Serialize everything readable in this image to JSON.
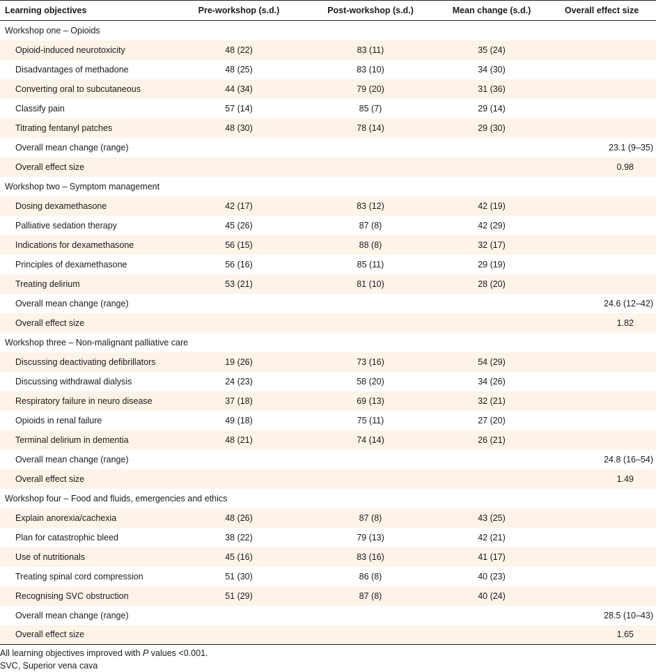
{
  "table": {
    "headers": [
      "Learning objectives",
      "Pre-workshop (s.d.)",
      "Post-workshop (s.d.)",
      "Mean change (s.d.)",
      "Overall effect size"
    ],
    "sections": [
      {
        "title": "Workshop one – Opioids",
        "rows": [
          {
            "objective": "Opioid-induced neurotoxicity",
            "pre": "48 (22)",
            "post": "83 (11)",
            "change": "35 (24)"
          },
          {
            "objective": "Disadvantages of methadone",
            "pre": "48 (25)",
            "post": "83 (10)",
            "change": "34 (30)"
          },
          {
            "objective": "Converting oral to subcutaneous",
            "pre": "44 (34)",
            "post": "79 (20)",
            "change": "31 (36)"
          },
          {
            "objective": "Classify pain",
            "pre": "57 (14)",
            "post": "85 (7)",
            "change": "29 (14)"
          },
          {
            "objective": "Titrating fentanyl patches",
            "pre": "48 (30)",
            "post": "78 (14)",
            "change": "29 (30)"
          }
        ],
        "mean_change_label": "Overall mean change (range)",
        "mean_change_value": "23.1 (9–35)",
        "effect_size_label": "Overall effect size",
        "effect_size_value": "0.98"
      },
      {
        "title": "Workshop two – Symptom management",
        "rows": [
          {
            "objective": "Dosing dexamethasone",
            "pre": "42 (17)",
            "post": "83 (12)",
            "change": "42 (19)"
          },
          {
            "objective": "Palliative sedation therapy",
            "pre": "45 (26)",
            "post": "87 (8)",
            "change": "42 (29)"
          },
          {
            "objective": "Indications for dexamethasone",
            "pre": "56 (15)",
            "post": "88 (8)",
            "change": "32 (17)"
          },
          {
            "objective": "Principles of dexamethasone",
            "pre": "56 (16)",
            "post": "85 (11)",
            "change": "29 (19)"
          },
          {
            "objective": "Treating delirium",
            "pre": "53 (21)",
            "post": "81 (10)",
            "change": "28 (20)"
          }
        ],
        "mean_change_label": "Overall mean change (range)",
        "mean_change_value": "24.6 (12–42)",
        "effect_size_label": "Overall effect size",
        "effect_size_value": "1.82"
      },
      {
        "title": "Workshop three – Non-malignant palliative care",
        "rows": [
          {
            "objective": "Discussing deactivating defibrillators",
            "pre": "19 (26)",
            "post": "73 (16)",
            "change": "54 (29)"
          },
          {
            "objective": "Discussing withdrawal dialysis",
            "pre": "24 (23)",
            "post": "58 (20)",
            "change": "34 (26)"
          },
          {
            "objective": "Respiratory failure in neuro disease",
            "pre": "37 (18)",
            "post": "69 (13)",
            "change": "32 (21)"
          },
          {
            "objective": "Opioids in renal failure",
            "pre": "49 (18)",
            "post": "75 (11)",
            "change": "27 (20)"
          },
          {
            "objective": "Terminal delirium in dementia",
            "pre": "48 (21)",
            "post": "74 (14)",
            "change": "26 (21)"
          }
        ],
        "mean_change_label": "Overall mean change (range)",
        "mean_change_value": "24.8 (16–54)",
        "effect_size_label": "Overall effect size",
        "effect_size_value": "1.49"
      },
      {
        "title": "Workshop four – Food and fluids, emergencies and ethics",
        "rows": [
          {
            "objective": "Explain anorexia/cachexia",
            "pre": "48 (26)",
            "post": "87 (8)",
            "change": "43 (25)"
          },
          {
            "objective": "Plan for catastrophic bleed",
            "pre": "38 (22)",
            "post": "79 (13)",
            "change": "42 (21)"
          },
          {
            "objective": "Use of nutritionals",
            "pre": "45 (16)",
            "post": "83 (16)",
            "change": "41 (17)"
          },
          {
            "objective": "Treating spinal cord compression",
            "pre": "51 (30)",
            "post": "86 (8)",
            "change": "40 (23)"
          },
          {
            "objective": "Recognising SVC obstruction",
            "pre": "51 (29)",
            "post": "87 (8)",
            "change": "40 (24)"
          }
        ],
        "mean_change_label": "Overall mean change (range)",
        "mean_change_value": "28.5 (10–43)",
        "effect_size_label": "Overall effect size",
        "effect_size_value": "1.65"
      }
    ]
  },
  "footnotes": {
    "line1_prefix": "All learning objectives improved with ",
    "line1_italic": "P",
    "line1_suffix": " values <0.001.",
    "line2": "SVC, Superior vena cava"
  },
  "colors": {
    "row_shade": "#fdf3e8",
    "rule": "#222222"
  }
}
